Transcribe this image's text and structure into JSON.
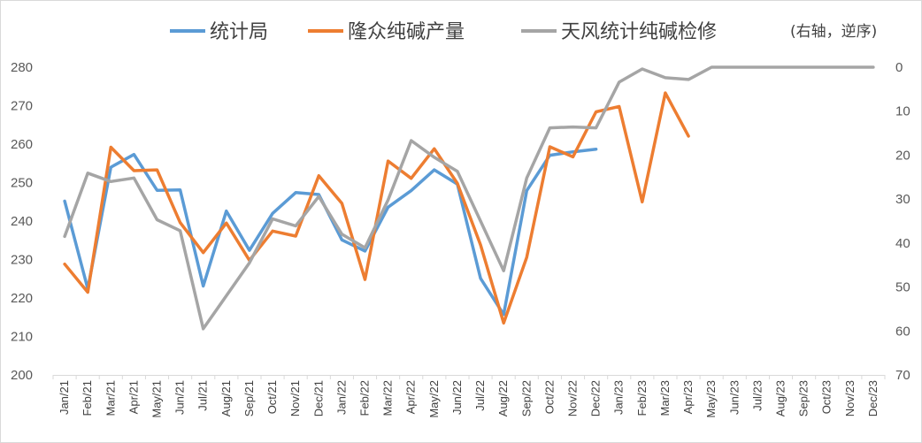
{
  "chart_data": {
    "type": "line",
    "categories": [
      "Jan/21",
      "Feb/21",
      "Mar/21",
      "Apr/21",
      "May/21",
      "Jun/21",
      "Jul/21",
      "Aug/21",
      "Sep/21",
      "Oct/21",
      "Nov/21",
      "Dec/21",
      "Jan/22",
      "Feb/22",
      "Mar/22",
      "Apr/22",
      "May/22",
      "Jun/22",
      "Jul/22",
      "Aug/22",
      "Sep/22",
      "Oct/22",
      "Nov/22",
      "Dec/22",
      "Jan/23",
      "Feb/23",
      "Mar/23",
      "Apr/23",
      "May/23",
      "Jun/23",
      "Jul/23",
      "Aug/23",
      "Sep/23",
      "Oct/23",
      "Nov/23",
      "Dec/23"
    ],
    "series": [
      {
        "name": "统计局",
        "axis": "left",
        "color": "#5b9bd5",
        "values": [
          245.2,
          222.4,
          254.0,
          257.3,
          248.0,
          248.1,
          223.1,
          242.6,
          232.4,
          242.0,
          247.4,
          246.9,
          235.1,
          232.2,
          243.6,
          247.9,
          253.3,
          249.6,
          225.1,
          215.7,
          247.9,
          257.1,
          258.0,
          258.7,
          null,
          null,
          null,
          null,
          null,
          null,
          null,
          null,
          null,
          null,
          null,
          null
        ]
      },
      {
        "name": "隆众纯碱产量",
        "axis": "left",
        "color": "#ed7d31",
        "values": [
          228.8,
          221.5,
          259.2,
          253.1,
          253.3,
          239.6,
          231.8,
          239.5,
          229.8,
          237.4,
          236.1,
          251.8,
          244.6,
          224.8,
          255.6,
          251.1,
          258.8,
          249.8,
          233.8,
          213.5,
          230.6,
          259.3,
          256.7,
          268.4,
          269.8,
          245.0,
          273.3,
          262.1,
          null,
          null,
          null,
          null,
          null,
          null,
          null,
          null
        ]
      },
      {
        "name": "天风统计纯碱检修",
        "axis": "right",
        "color": "#a5a5a5",
        "values": [
          38.5,
          24.1,
          26.0,
          25.2,
          34.7,
          37.2,
          59.5,
          52.0,
          44.5,
          34.5,
          36.1,
          29.4,
          38.0,
          41.1,
          30.2,
          16.7,
          20.5,
          23.7,
          35.0,
          46.3,
          25.2,
          13.8,
          13.6,
          13.8,
          3.4,
          0.4,
          2.4,
          2.8,
          0,
          0,
          0,
          0,
          0,
          0,
          0,
          0
        ]
      }
    ],
    "y_left": {
      "ticks": [
        "200",
        "210",
        "220",
        "230",
        "240",
        "250",
        "260",
        "270",
        "280"
      ],
      "ylim": [
        200,
        280
      ]
    },
    "y_right": {
      "ticks": [
        "0",
        "10",
        "20",
        "30",
        "40",
        "50",
        "60",
        "70"
      ],
      "ylim": [
        0,
        70
      ],
      "reversed": true
    },
    "legend_position": "top",
    "right_axis_note": "(右轴，逆序)",
    "grid": false
  }
}
